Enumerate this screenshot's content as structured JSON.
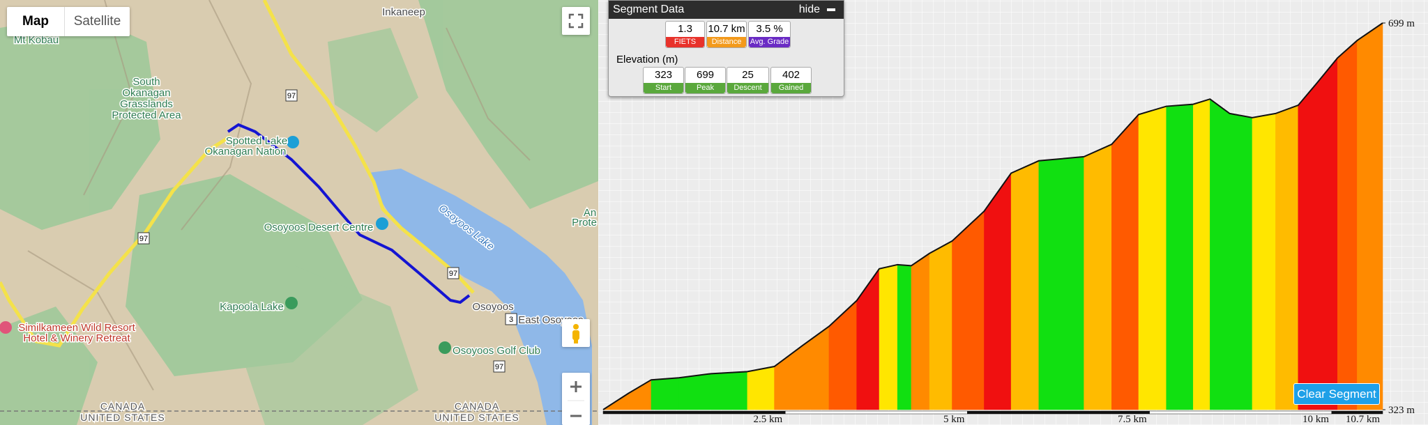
{
  "map": {
    "buttons": [
      "Map",
      "Satellite"
    ],
    "labels": [
      "Inkaneep",
      "Mt Kobau",
      "South",
      "Okanagan",
      "Grasslands",
      "Protected Area",
      "Spotted Lake",
      "Okanagan Nation",
      "Osoyoos Desert Centre",
      "Osoyoos Lake",
      "An",
      "Prote",
      "Kapoola Lake",
      "Osoyoos",
      "East Osoyoos",
      "Similkameen Wild Resort",
      "Hotel & Winery Retreat",
      "Osoyoos Golf Club",
      "CANADA",
      "UNITED STATES",
      "CANADA",
      "UNITED STATES"
    ],
    "highways": [
      "97",
      "97",
      "97",
      "3",
      "97"
    ]
  },
  "segment_panel": {
    "title": "Segment Data",
    "hide": "hide",
    "stats": [
      {
        "value": "1.3",
        "label": "FIETS"
      },
      {
        "value": "10.7 km",
        "label": "Distance"
      },
      {
        "value": "3.5 %",
        "label": "Avg. Grade"
      }
    ],
    "elevation_title": "Elevation (m)",
    "elevation": [
      {
        "value": "323",
        "label": "Start"
      },
      {
        "value": "699",
        "label": "Peak"
      },
      {
        "value": "25",
        "label": "Descent"
      },
      {
        "value": "402",
        "label": "Gained"
      }
    ]
  },
  "profile": {
    "km": [
      0,
      0.35,
      0.66,
      1.04,
      1.48,
      1.98,
      2.35,
      2.73,
      3.1,
      3.48,
      3.79,
      4.04,
      4.23,
      4.48,
      4.79,
      5.23,
      5.6,
      5.98,
      6.6,
      6.98,
      7.35,
      7.73,
      8.1,
      8.33,
      8.6,
      8.91,
      9.23,
      9.54,
      9.79,
      10.08,
      10.35,
      10.7
    ],
    "elevation": [
      323,
      339,
      352,
      354,
      358,
      360,
      365,
      385,
      404,
      429,
      460,
      464,
      463,
      475,
      487,
      516,
      553,
      565,
      569,
      581,
      610,
      618,
      620,
      625,
      611,
      607,
      611,
      619,
      640,
      665,
      682,
      699
    ],
    "xlim": [
      0,
      10.7
    ],
    "ylim": [
      323,
      699
    ],
    "xticks": [
      {
        "value": 2.5,
        "label": "2.5 km"
      },
      {
        "value": 5,
        "label": "5 km"
      },
      {
        "value": 7.5,
        "label": "7.5 km"
      },
      {
        "value": 10,
        "label": "10 km"
      },
      {
        "value": 10.7,
        "label": "10.7 km"
      }
    ],
    "yticks": [
      {
        "value": 699,
        "label": "699 m"
      },
      {
        "value": 323,
        "label": "323 m"
      }
    ]
  },
  "clear_button": "Clear Segment"
}
